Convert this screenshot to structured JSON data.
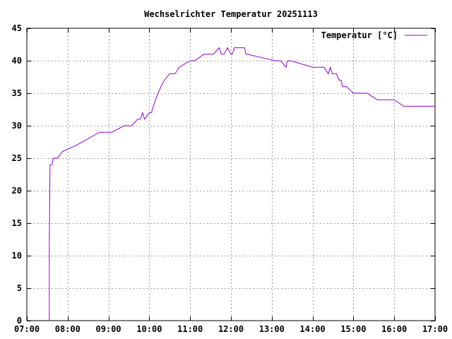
{
  "chart_data": {
    "type": "line",
    "title": "Wechselrichter Temperatur 20251113",
    "xlabel": "",
    "ylabel": "",
    "xlim": [
      "07:00",
      "17:00"
    ],
    "ylim": [
      0,
      45
    ],
    "x_ticks": [
      "07:00",
      "08:00",
      "09:00",
      "10:00",
      "11:00",
      "12:00",
      "13:00",
      "14:00",
      "15:00",
      "16:00",
      "17:00"
    ],
    "y_ticks": [
      0,
      5,
      10,
      15,
      20,
      25,
      30,
      35,
      40,
      45
    ],
    "grid": true,
    "legend_position": "top-right",
    "series": [
      {
        "name": "Temperatur [°C]",
        "color": "#9400d3",
        "x": [
          "07:33",
          "07:33",
          "07:34",
          "07:35",
          "07:37",
          "07:39",
          "07:45",
          "07:52",
          "08:13",
          "08:30",
          "08:47",
          "09:05",
          "09:23",
          "09:30",
          "09:34",
          "09:43",
          "09:47",
          "09:50",
          "09:53",
          "10:00",
          "10:03",
          "10:06",
          "10:09",
          "10:13",
          "10:17",
          "10:22",
          "10:30",
          "10:38",
          "10:44",
          "11:00",
          "11:07",
          "11:20",
          "11:34",
          "11:43",
          "11:46",
          "11:50",
          "11:55",
          "12:00",
          "12:02",
          "12:05",
          "12:08",
          "12:11",
          "12:15",
          "12:18",
          "12:20",
          "12:22",
          "12:24",
          "13:05",
          "13:13",
          "13:21",
          "13:23",
          "13:28",
          "14:00",
          "14:05",
          "14:17",
          "14:23",
          "14:26",
          "14:29",
          "14:33",
          "14:35",
          "14:39",
          "14:42",
          "14:44",
          "14:50",
          "15:00",
          "15:20",
          "15:35",
          "15:40",
          "16:00",
          "16:14",
          "16:40",
          "16:53",
          "17:00"
        ],
        "values": [
          0,
          12,
          24,
          24,
          24,
          25,
          25,
          26,
          27,
          28,
          29,
          29,
          30,
          30,
          30,
          31,
          31,
          32,
          31,
          32,
          32,
          33,
          34,
          35,
          36,
          37,
          38,
          38,
          39,
          40,
          40,
          41,
          41,
          42,
          41,
          41,
          42,
          41,
          41,
          42,
          42,
          42,
          42,
          42,
          42,
          41,
          41,
          40,
          40,
          39,
          40,
          40,
          39,
          39,
          39,
          38,
          39,
          38,
          38,
          38,
          37,
          37,
          36,
          36,
          35,
          35,
          34,
          34,
          34,
          33,
          33,
          33,
          33
        ]
      }
    ]
  }
}
